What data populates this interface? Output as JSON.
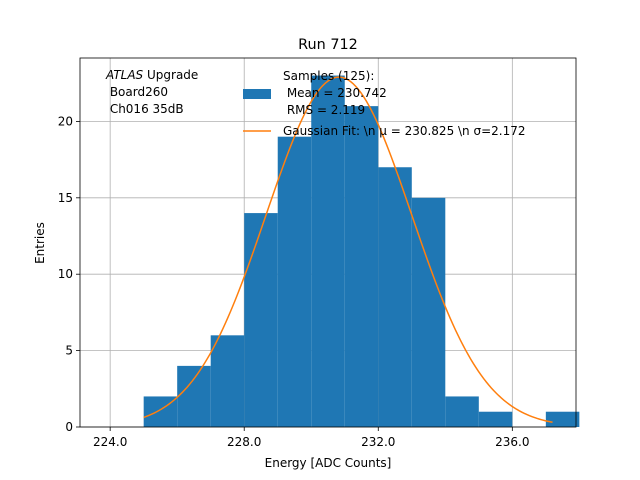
{
  "chart_data": {
    "type": "bar",
    "title": "Run 712",
    "xlabel": "Energy [ADC Counts]",
    "ylabel": "Entries",
    "xlim": [
      223.1,
      237.9
    ],
    "ylim": [
      0,
      24.15
    ],
    "x_ticks": [
      224,
      228,
      232,
      236
    ],
    "x_tick_labels": [
      "224.0",
      "228.0",
      "232.0",
      "236.0"
    ],
    "y_ticks": [
      0,
      5,
      10,
      15,
      20
    ],
    "y_tick_labels": [
      "0",
      "5",
      "10",
      "15",
      "20"
    ],
    "grid": true,
    "annotation": {
      "line1_italic": "ATLAS",
      "line1_rest": " Upgrade",
      "line2": " Board260",
      "line3": " Ch016 35dB"
    },
    "histogram": {
      "bin_edges": [
        225,
        226,
        227,
        228,
        229,
        230,
        231,
        232,
        233,
        234,
        235,
        236,
        237,
        238
      ],
      "counts": [
        2,
        4,
        6,
        14,
        19,
        23,
        21,
        17,
        15,
        2,
        1,
        0,
        1
      ],
      "color": "#1f77b4"
    },
    "fit": {
      "type": "gaussian",
      "mu": 230.825,
      "sigma": 2.172,
      "amplitude": 22.9,
      "x_start": 225,
      "x_end": 237.2,
      "color": "#ff7f0e"
    },
    "legend": {
      "position": "top-right",
      "entries": [
        {
          "kind": "patch",
          "lines": [
            "Samples (125):",
            " Mean = 230.742",
            " RMS = 2.119"
          ],
          "color": "#1f77b4"
        },
        {
          "kind": "line",
          "lines": [
            "Gaussian Fit: \\n μ = 230.825 \\n σ=2.172"
          ],
          "color": "#ff7f0e"
        }
      ]
    }
  }
}
